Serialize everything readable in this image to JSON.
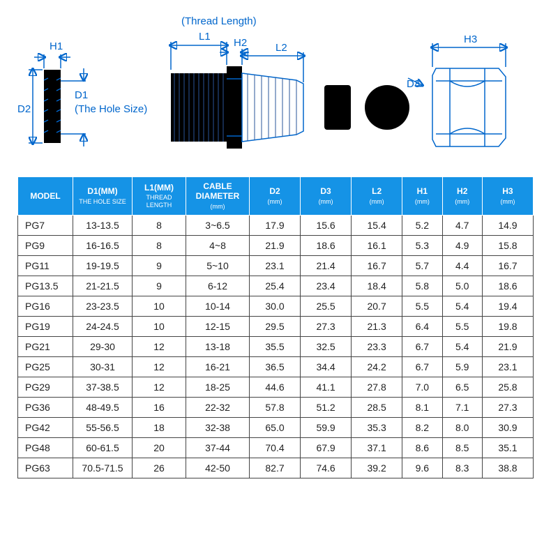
{
  "diagram": {
    "labels": {
      "thread_length": "(Thread Length)",
      "L1": "L1",
      "H1": "H1",
      "H2": "H2",
      "L2": "L2",
      "H3": "H3",
      "D1": "D1",
      "D2": "D2",
      "D3": "D3",
      "hole_size": "(The Hole Size)"
    },
    "line_color": "#0066cc"
  },
  "table": {
    "header_bg": "#1593e6",
    "header_fg": "#ffffff",
    "columns": [
      {
        "main": "MODEL",
        "sub": ""
      },
      {
        "main": "D1(MM)",
        "sub": "THE HOLE SIZE"
      },
      {
        "main": "L1(MM)",
        "sub": "THREAD LENGTH"
      },
      {
        "main": "CABLE DIAMETER",
        "sub": "(mm)"
      },
      {
        "main": "D2",
        "sub": "(mm)"
      },
      {
        "main": "D3",
        "sub": "(mm)"
      },
      {
        "main": "L2",
        "sub": "(mm)"
      },
      {
        "main": "H1",
        "sub": "(mm)"
      },
      {
        "main": "H2",
        "sub": "(mm)"
      },
      {
        "main": "H3",
        "sub": "(mm)"
      }
    ],
    "rows": [
      [
        "PG7",
        "13-13.5",
        "8",
        "3~6.5",
        "17.9",
        "15.6",
        "15.4",
        "5.2",
        "4.7",
        "14.9"
      ],
      [
        "PG9",
        "16-16.5",
        "8",
        "4~8",
        "21.9",
        "18.6",
        "16.1",
        "5.3",
        "4.9",
        "15.8"
      ],
      [
        "PG11",
        "19-19.5",
        "9",
        "5~10",
        "23.1",
        "21.4",
        "16.7",
        "5.7",
        "4.4",
        "16.7"
      ],
      [
        "PG13.5",
        "21-21.5",
        "9",
        "6-12",
        "25.4",
        "23.4",
        "18.4",
        "5.8",
        "5.0",
        "18.6"
      ],
      [
        "PG16",
        "23-23.5",
        "10",
        "10-14",
        "30.0",
        "25.5",
        "20.7",
        "5.5",
        "5.4",
        "19.4"
      ],
      [
        "PG19",
        "24-24.5",
        "10",
        "12-15",
        "29.5",
        "27.3",
        "21.3",
        "6.4",
        "5.5",
        "19.8"
      ],
      [
        "PG21",
        "29-30",
        "12",
        "13-18",
        "35.5",
        "32.5",
        "23.3",
        "6.7",
        "5.4",
        "21.9"
      ],
      [
        "PG25",
        "30-31",
        "12",
        "16-21",
        "36.5",
        "34.4",
        "24.2",
        "6.7",
        "5.9",
        "23.1"
      ],
      [
        "PG29",
        "37-38.5",
        "12",
        "18-25",
        "44.6",
        "41.1",
        "27.8",
        "7.0",
        "6.5",
        "25.8"
      ],
      [
        "PG36",
        "48-49.5",
        "16",
        "22-32",
        "57.8",
        "51.2",
        "28.5",
        "8.1",
        "7.1",
        "27.3"
      ],
      [
        "PG42",
        "55-56.5",
        "18",
        "32-38",
        "65.0",
        "59.9",
        "35.3",
        "8.2",
        "8.0",
        "30.9"
      ],
      [
        "PG48",
        "60-61.5",
        "20",
        "37-44",
        "70.4",
        "67.9",
        "37.1",
        "8.6",
        "8.5",
        "35.1"
      ],
      [
        "PG63",
        "70.5-71.5",
        "26",
        "42-50",
        "82.7",
        "74.6",
        "39.2",
        "9.6",
        "8.3",
        "38.8"
      ]
    ]
  }
}
